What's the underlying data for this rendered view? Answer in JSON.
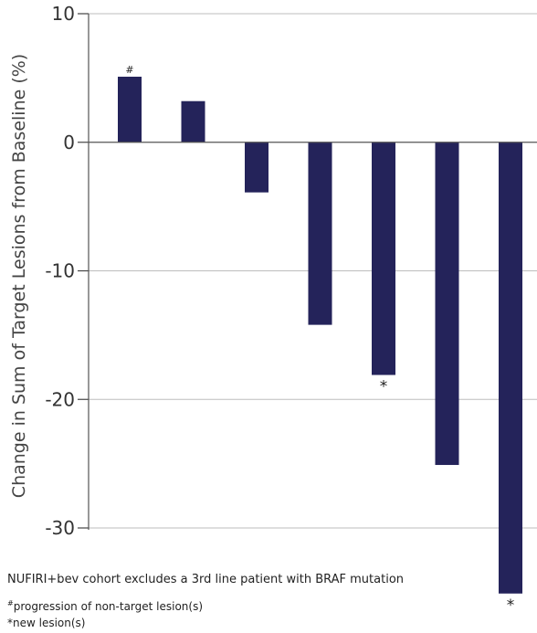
{
  "chart_data": {
    "type": "bar",
    "title": "",
    "xlabel": "",
    "ylabel": "Change in Sum of Target Lesions from Baseline (%)",
    "ylim": [
      -35,
      10
    ],
    "yticks": [
      10,
      0,
      -10,
      -20,
      -30
    ],
    "grid": true,
    "bar_color": "#24235a",
    "values": [
      5.1,
      3.2,
      -3.9,
      -14.2,
      -18.1,
      -25.1,
      -35.1
    ],
    "annotations": [
      {
        "bar_index": 0,
        "symbol": "#"
      },
      {
        "bar_index": 4,
        "symbol": "*"
      },
      {
        "bar_index": 6,
        "symbol": "*"
      }
    ]
  },
  "notes": {
    "main": "NUFIRI+bev cohort excludes a 3rd line patient with BRAF mutation",
    "hash_symbol": "#",
    "hash_text": "progression of non-target lesion(s)",
    "star_symbol": "*",
    "star_text": "new lesion(s)"
  }
}
